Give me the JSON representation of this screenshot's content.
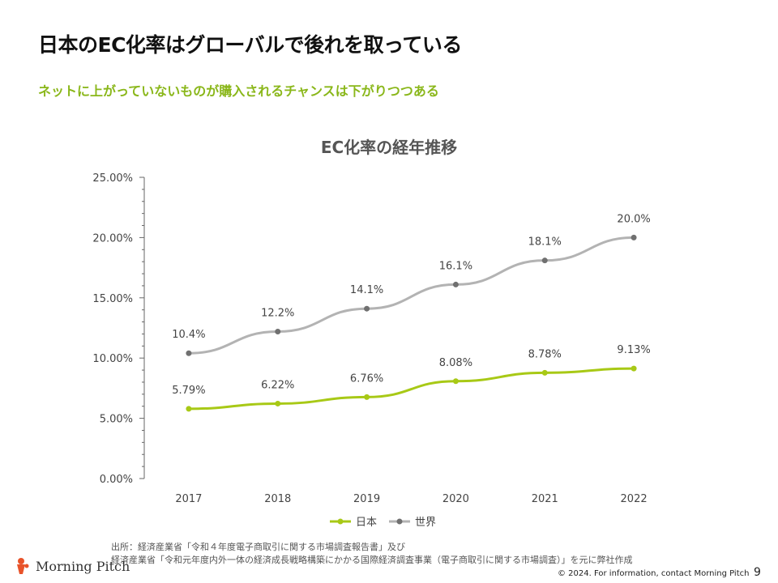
{
  "slide": {
    "title": "日本のEC化率はグローバルで後れを取っている",
    "subtitle": "ネットに上がっていないものが購入されるチャンスは下がりつつある",
    "source_line1": "出所：経済産業省「令和４年度電子商取引に関する市場調査報告書」及び",
    "source_line2": "経済産業省「令和元年度内外一体の経済成長戦略構築にかかる国際経済調査事業（電子商取引に関する市場調査）」を元に弊社作成",
    "logo_text": "Morning Pitch",
    "copyright": "© 2024. For information,  contact Morning  Pitch",
    "page_number": "9"
  },
  "chart_data": {
    "type": "line",
    "title": "EC化率の経年推移",
    "categories": [
      "2017",
      "2018",
      "2019",
      "2020",
      "2021",
      "2022"
    ],
    "ylim": [
      0,
      25
    ],
    "yticks": [
      0,
      5,
      10,
      15,
      20,
      25
    ],
    "ytick_labels": [
      "0.00%",
      "5.00%",
      "10.00%",
      "15.00%",
      "20.00%",
      "25.00%"
    ],
    "series": [
      {
        "name": "日本",
        "color": "#a8c916",
        "values": [
          5.79,
          6.22,
          6.76,
          8.08,
          8.78,
          9.13
        ],
        "labels": [
          "5.79%",
          "6.22%",
          "6.76%",
          "8.08%",
          "8.78%",
          "9.13%"
        ]
      },
      {
        "name": "世界",
        "color": "#b3b3b3",
        "values": [
          10.4,
          12.2,
          14.1,
          16.1,
          18.1,
          20.0
        ],
        "labels": [
          "10.4%",
          "12.2%",
          "14.1%",
          "16.1%",
          "18.1%",
          "20.0%"
        ]
      }
    ],
    "legend_position": "bottom",
    "grid": false
  }
}
